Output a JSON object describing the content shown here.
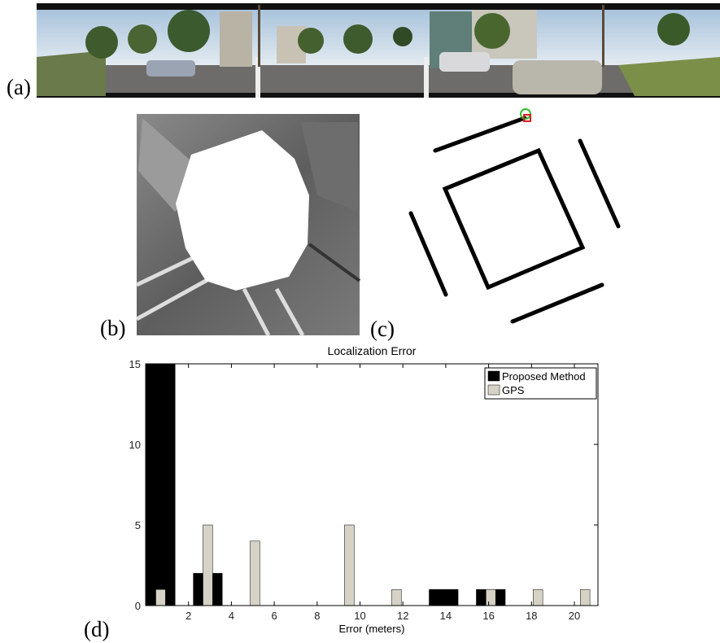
{
  "labels": {
    "a": "(a)",
    "b": "(b)",
    "c": "(c)",
    "d": "(d)"
  },
  "chart_data": {
    "type": "bar",
    "title": "Localization Error",
    "x_label": "Error (meters)",
    "x": [
      0.7,
      2.9,
      5.1,
      7.3,
      9.5,
      11.7,
      13.9,
      16.1,
      18.3,
      20.5
    ],
    "series": [
      {
        "name": "Proposed Method",
        "color": "#000000",
        "values": [
          15,
          2,
          0,
          0,
          0,
          0,
          1,
          1,
          0,
          0
        ]
      },
      {
        "name": "GPS",
        "color": "#d6d3c6",
        "values": [
          1,
          5,
          4,
          0,
          5,
          1,
          0,
          1,
          1,
          1
        ]
      }
    ],
    "xlim": [
      0,
      21.1
    ],
    "ylim": [
      0,
      15
    ],
    "xticks": [
      2,
      4,
      6,
      8,
      10,
      12,
      14,
      16,
      18,
      20
    ],
    "yticks": [
      0,
      5,
      10,
      15
    ],
    "legend": "upper right"
  }
}
